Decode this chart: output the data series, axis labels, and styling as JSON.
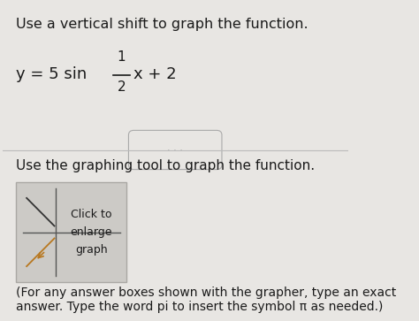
{
  "bg_color": "#e8e6e3",
  "title_text": "Use a vertical shift to graph the function.",
  "formula_prefix": "y = 5 sin ",
  "formula_fraction_num": "1",
  "formula_fraction_den": "2",
  "formula_tail": "x + 2",
  "divider_text": "· · ·",
  "section2_text": "Use the graphing tool to graph the function.",
  "box_text_line1": "Click to",
  "box_text_line2": "enlarge",
  "box_text_line3": "graph",
  "footer_text": "(For any answer boxes shown with the grapher, type an exact\nanswer. Type the word pi to insert the symbol π as needed.)",
  "title_fontsize": 11.5,
  "body_fontsize": 11,
  "formula_fontsize": 13,
  "small_fontsize": 10,
  "text_color": "#1a1a1a",
  "box_bg": "#cccac6",
  "box_border": "#aaa8a4",
  "divider_color": "#aaaaaa",
  "line_color": "#bbbbbb"
}
